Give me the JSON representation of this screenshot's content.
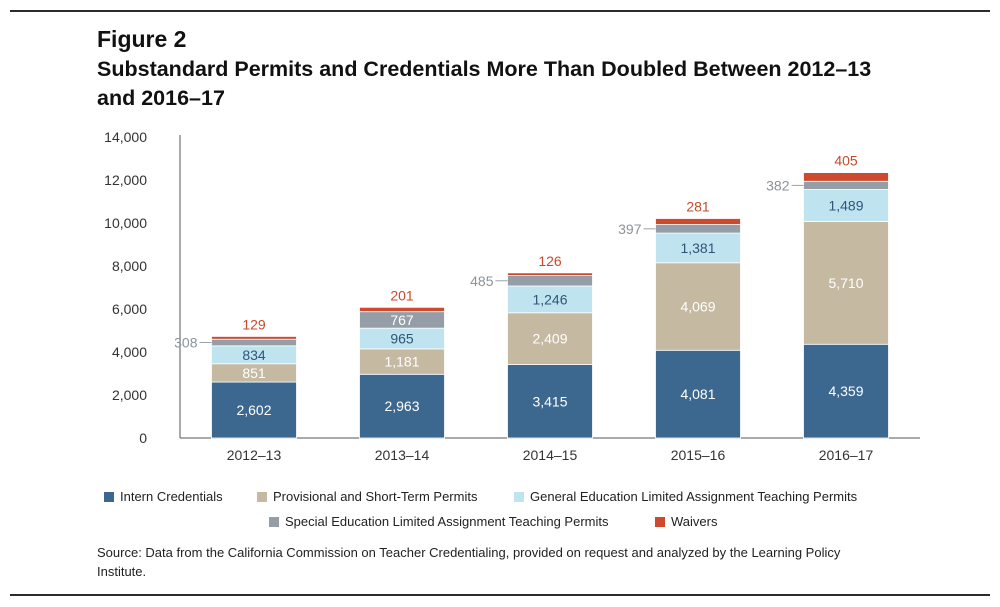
{
  "figure": {
    "label": "Figure 2",
    "title": "Substandard Permits and Credentials More Than Doubled Between 2012–13 and 2016–17"
  },
  "source": "Source: Data from the California Commission on Teacher Credentialing, provided on request and analyzed by the Learning Policy Institute.",
  "legend": [
    {
      "label": "Intern Credentials",
      "color": "#3c6890"
    },
    {
      "label": "Provisional and Short-Term Permits",
      "color": "#c6b9a2"
    },
    {
      "label": "General Education Limited Assignment Teaching Permits",
      "color": "#bfe3ef"
    },
    {
      "label": "Special Education Limited Assignment Teaching Permits",
      "color": "#959ea6"
    },
    {
      "label": "Waivers",
      "color": "#cd4a2e"
    }
  ],
  "chart_data": {
    "type": "bar",
    "stacked": true,
    "categories": [
      "2012–13",
      "2013–14",
      "2014–15",
      "2015–16",
      "2016–17"
    ],
    "series": [
      {
        "name": "Intern Credentials",
        "values": [
          2602,
          2963,
          3415,
          4081,
          4359
        ],
        "color": "#3c6890",
        "label_color": "#ffffff"
      },
      {
        "name": "Provisional and Short-Term Permits",
        "values": [
          851,
          1181,
          2409,
          4069,
          5710
        ],
        "color": "#c6b9a2",
        "label_color": "#ffffff"
      },
      {
        "name": "General Education Limited Assignment Teaching Permits",
        "values": [
          834,
          965,
          1246,
          1381,
          1489
        ],
        "color": "#bfe3ef",
        "label_color": "#2f5679"
      },
      {
        "name": "Special Education Limited Assignment Teaching Permits",
        "values": [
          308,
          767,
          485,
          397,
          382
        ],
        "color": "#959ea6",
        "label_color": "#8a939b"
      },
      {
        "name": "Waivers",
        "values": [
          129,
          201,
          126,
          281,
          405
        ],
        "color": "#cd4a2e",
        "label_color": "#c84a2a"
      }
    ],
    "special_label_inside_index": 1,
    "yticks": [
      "0",
      "2,000",
      "4,000",
      "6,000",
      "8,000",
      "10,000",
      "12,000",
      "14,000"
    ],
    "ylim": [
      0,
      14000
    ],
    "grid": false
  }
}
